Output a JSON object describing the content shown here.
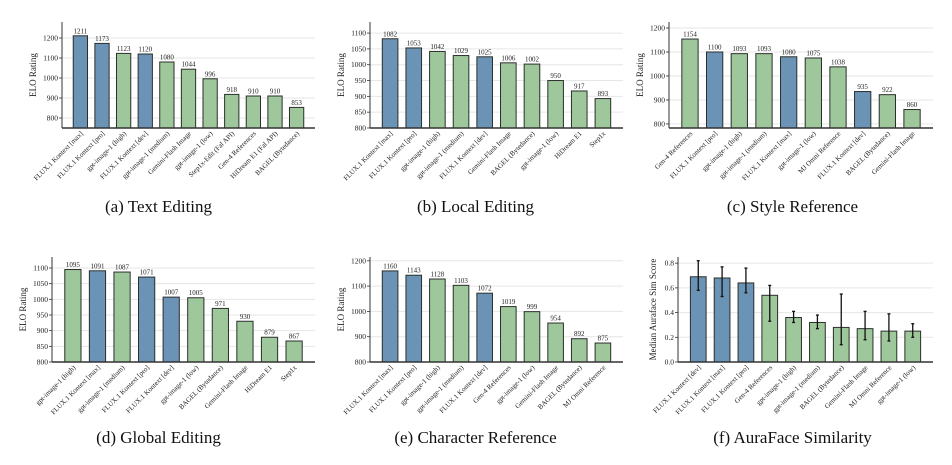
{
  "colors": {
    "flux": "#6b93b6",
    "other": "#9ec79b",
    "edge": "#2b2f2b",
    "grid": "#e6e6e6",
    "axis": "#333333"
  },
  "chart_data": [
    {
      "type": "bar",
      "caption": "(a) Text Editing",
      "ylabel": "ELO Rating",
      "categories": [
        "FLUX.1 Kontext [max]",
        "FLUX.1 Kontext [pro]",
        "gpt-image-1 (high)",
        "FLUX.1 Kontext [dev]",
        "gpt-image-1 (medium)",
        "Gemini-Flash Image",
        "gpt-image-1 (low)",
        "Step1x-Edit (Fal API)",
        "Gen-4 References",
        "HiDream E1 (Fal API)",
        "BAGEL (Bytedance)"
      ],
      "values": [
        1211,
        1173,
        1123,
        1120,
        1080,
        1044,
        996,
        918,
        910,
        910,
        853
      ],
      "highlight": [
        true,
        true,
        false,
        true,
        false,
        false,
        false,
        false,
        false,
        false,
        false
      ],
      "yticks": [
        800,
        900,
        1000,
        1100,
        1200
      ],
      "ylim": [
        750,
        1280
      ],
      "grid": true
    },
    {
      "type": "bar",
      "caption": "(b) Local Editing",
      "ylabel": "ELO Rating",
      "categories": [
        "FLUX.1 Kontext [max]",
        "FLUX.1 Kontext [pro]",
        "gpt-image-1 (high)",
        "gpt-image-1 (medium)",
        "FLUX.1 Kontext [dev]",
        "Gemini-Flash Image",
        "BAGEL (Bytedance)",
        "gpt-image-1 (low)",
        "HiDream E1",
        "Step1x"
      ],
      "values": [
        1082,
        1053,
        1042,
        1029,
        1025,
        1006,
        1002,
        950,
        917,
        893
      ],
      "highlight": [
        true,
        true,
        false,
        false,
        true,
        false,
        false,
        false,
        false,
        false
      ],
      "yticks": [
        800,
        850,
        900,
        950,
        1000,
        1050,
        1100
      ],
      "ylim": [
        800,
        1135
      ],
      "grid": true
    },
    {
      "type": "bar",
      "caption": "(c) Style Reference",
      "ylabel": "ELO Rating",
      "categories": [
        "Gen-4 References",
        "FLUX.1 Kontext [pro]",
        "gpt-image-1 (high)",
        "gpt-image-1 (medium)",
        "FLUX.1 Kontext [max]",
        "gpt-image-1 (low)",
        "MJ Omni Reference",
        "FLUX.1 Kontext [dev]",
        "BAGEL (Bytedance)",
        "Gemini-Flash Image"
      ],
      "values": [
        1154,
        1100,
        1093,
        1093,
        1080,
        1075,
        1038,
        935,
        922,
        860
      ],
      "highlight": [
        false,
        true,
        false,
        false,
        true,
        false,
        false,
        true,
        false,
        false
      ],
      "yticks": [
        800,
        900,
        1000,
        1100,
        1200
      ],
      "ylim": [
        783,
        1225
      ],
      "grid": true
    },
    {
      "type": "bar",
      "caption": "(d) Global Editing",
      "ylabel": "ELO Rating",
      "categories": [
        "gpt-image-1 (high)",
        "FLUX.1 Kontext [max]",
        "gpt-image-1 (medium)",
        "FLUX.1 Kontext [pro]",
        "FLUX.1 Kontext [dev]",
        "gpt-image-1 (low)",
        "BAGEL (Bytedance)",
        "Gemini-Flash Image",
        "HiDream E1",
        "Step1x"
      ],
      "values": [
        1095,
        1091,
        1087,
        1071,
        1007,
        1005,
        971,
        930,
        879,
        867
      ],
      "highlight": [
        false,
        true,
        false,
        true,
        true,
        false,
        false,
        false,
        false,
        false
      ],
      "yticks": [
        800,
        850,
        900,
        950,
        1000,
        1050,
        1100
      ],
      "ylim": [
        800,
        1135
      ],
      "grid": true
    },
    {
      "type": "bar",
      "caption": "(e) Character Reference",
      "ylabel": "ELO Rating",
      "categories": [
        "FLUX.1 Kontext [max]",
        "FLUX.1 Kontext [pro]",
        "gpt-image-1 (high)",
        "gpt-image-1 (medium)",
        "FLUX.1 Kontext [dev]",
        "Gen-4 References",
        "gpt-image-1 (low)",
        "Gemini-Flash Image",
        "BAGEL (Bytedance)",
        "MJ Omni Reference"
      ],
      "values": [
        1160,
        1143,
        1128,
        1103,
        1072,
        1019,
        999,
        954,
        892,
        875
      ],
      "highlight": [
        true,
        true,
        false,
        false,
        true,
        false,
        false,
        false,
        false,
        false
      ],
      "yticks": [
        800,
        900,
        1000,
        1100,
        1200
      ],
      "ylim": [
        800,
        1215
      ],
      "grid": true
    },
    {
      "type": "bar",
      "caption": "(f) AuraFace Similarity",
      "ylabel": "Median Auraface Sim Score",
      "categories": [
        "FLUX.1 Kontext [dev]",
        "FLUX.1 Kontext [max]",
        "FLUX.1 Kontext [pro]",
        "Gen-4 References",
        "gpt-image-1 (high)",
        "gpt-image-1 (medium)",
        "BAGEL (Bytedance)",
        "Gemini-Flash Image",
        "MJ Omni Reference",
        "gpt-image-1 (low)"
      ],
      "values": [
        0.69,
        0.68,
        0.64,
        0.54,
        0.36,
        0.32,
        0.28,
        0.27,
        0.25,
        0.25
      ],
      "error_low": [
        0.58,
        0.53,
        0.56,
        0.33,
        0.32,
        0.27,
        0.14,
        0.18,
        0.17,
        0.2
      ],
      "error_high": [
        0.82,
        0.77,
        0.76,
        0.62,
        0.41,
        0.38,
        0.55,
        0.41,
        0.39,
        0.31
      ],
      "highlight": [
        true,
        true,
        true,
        false,
        false,
        false,
        false,
        false,
        false,
        false
      ],
      "yticks": [
        0.0,
        0.2,
        0.4,
        0.6,
        0.8
      ],
      "ylim": [
        0,
        0.85
      ],
      "grid": true,
      "show_value_labels": false
    }
  ]
}
